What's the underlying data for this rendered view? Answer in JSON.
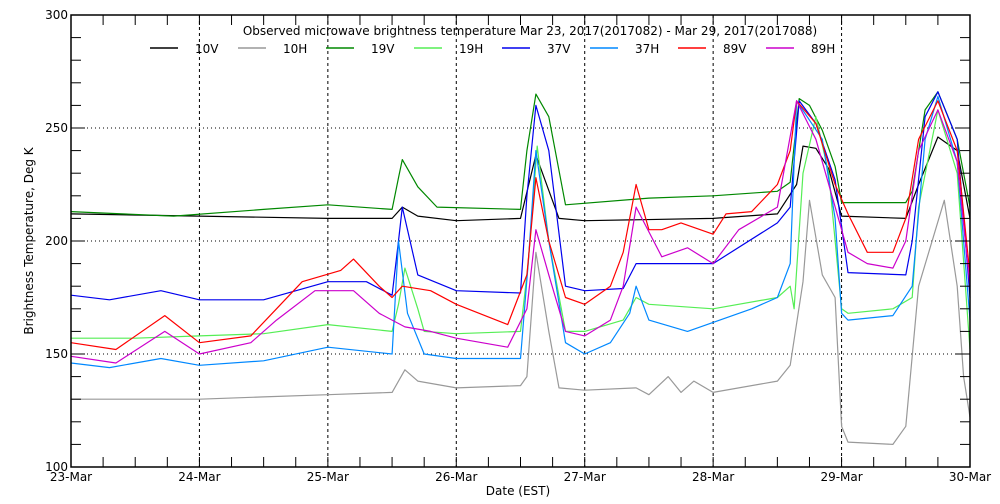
{
  "chart_data": {
    "type": "line",
    "title": "Observed microwave brightness temperature Mar 23, 2017(2017082) - Mar 29, 2017(2017088)",
    "xlabel": "Date (EST)",
    "ylabel": "Brightness Temperature, Deg K",
    "xlim": [
      0,
      7
    ],
    "ylim": [
      100,
      300
    ],
    "x_unit": "days since 23-Mar 00:00",
    "x_ticks": [
      "23-Mar",
      "24-Mar",
      "25-Mar",
      "26-Mar",
      "27-Mar",
      "28-Mar",
      "29-Mar",
      "30-Mar"
    ],
    "y_ticks": [
      "100",
      "150",
      "200",
      "250",
      "300"
    ],
    "grid": true,
    "legend_position": "top",
    "series": [
      {
        "name": "10V",
        "color": "#000000",
        "t": [
          0,
          1,
          2,
          2.5,
          2.58,
          2.7,
          3,
          3.5,
          3.62,
          3.8,
          4,
          5,
          5.5,
          5.65,
          5.7,
          5.8,
          5.9,
          6,
          6.5,
          6.6,
          6.75,
          6.9,
          7
        ],
        "values": [
          212,
          211,
          210,
          210,
          215,
          211,
          209,
          210,
          238,
          210,
          209,
          210,
          212,
          225,
          242,
          241,
          232,
          211,
          210,
          225,
          246,
          240,
          210
        ]
      },
      {
        "name": "10H",
        "color": "#999999",
        "t": [
          0,
          1,
          1.5,
          2,
          2.5,
          2.6,
          2.7,
          3,
          3.5,
          3.55,
          3.62,
          3.72,
          3.8,
          4,
          4.4,
          4.5,
          4.65,
          4.75,
          4.85,
          5,
          5.5,
          5.6,
          5.7,
          5.75,
          5.85,
          5.95,
          6,
          6.05,
          6.4,
          6.5,
          6.6,
          6.8,
          6.9,
          6.95,
          7
        ],
        "values": [
          130,
          130,
          131,
          132,
          133,
          143,
          138,
          135,
          136,
          140,
          195,
          160,
          135,
          134,
          135,
          132,
          140,
          133,
          138,
          133,
          138,
          145,
          182,
          218,
          185,
          175,
          118,
          111,
          110,
          118,
          180,
          218,
          180,
          140,
          122
        ]
      },
      {
        "name": "19V",
        "color": "#008800",
        "t": [
          0,
          0.8,
          1.5,
          2,
          2.5,
          2.55,
          2.58,
          2.7,
          2.85,
          3.5,
          3.55,
          3.62,
          3.72,
          3.85,
          4.5,
          5,
          5.5,
          5.6,
          5.67,
          5.75,
          5.85,
          5.95,
          6,
          6.5,
          6.55,
          6.65,
          6.75,
          6.9,
          7
        ],
        "values": [
          213,
          211,
          214,
          216,
          214,
          228,
          236,
          224,
          215,
          214,
          240,
          265,
          255,
          216,
          219,
          220,
          222,
          226,
          263,
          260,
          249,
          233,
          217,
          217,
          222,
          258,
          266,
          245,
          215
        ]
      },
      {
        "name": "19H",
        "color": "#55ee55",
        "t": [
          0,
          0.5,
          1,
          1.5,
          2,
          2.5,
          2.55,
          2.6,
          2.7,
          2.75,
          3,
          3.5,
          3.56,
          3.63,
          3.72,
          3.85,
          4,
          4.3,
          4.4,
          4.5,
          5,
          5.5,
          5.6,
          5.63,
          5.7,
          5.8,
          5.9,
          6,
          6.05,
          6.4,
          6.55,
          6.6,
          6.75,
          6.9,
          7
        ],
        "values": [
          157,
          157,
          158,
          159,
          163,
          160,
          172,
          188,
          170,
          160,
          159,
          160,
          190,
          242,
          200,
          160,
          160,
          165,
          175,
          172,
          170,
          175,
          180,
          170,
          230,
          255,
          230,
          170,
          168,
          170,
          175,
          215,
          258,
          230,
          152
        ]
      },
      {
        "name": "37V",
        "color": "#0000ee",
        "t": [
          0,
          0.3,
          0.7,
          1,
          1.5,
          2,
          2.3,
          2.5,
          2.55,
          2.58,
          2.62,
          2.7,
          3,
          3.5,
          3.55,
          3.62,
          3.72,
          3.85,
          4,
          4.3,
          4.4,
          4.6,
          5,
          5.5,
          5.6,
          5.67,
          5.8,
          5.95,
          6.05,
          6.5,
          6.55,
          6.65,
          6.75,
          6.9,
          7
        ],
        "values": [
          176,
          174,
          178,
          174,
          174,
          182,
          182,
          176,
          200,
          215,
          205,
          185,
          178,
          177,
          220,
          260,
          240,
          180,
          178,
          179,
          190,
          190,
          190,
          208,
          215,
          262,
          252,
          227,
          186,
          185,
          200,
          255,
          266,
          245,
          175
        ]
      },
      {
        "name": "37H",
        "color": "#0088ff",
        "t": [
          0,
          0.3,
          0.7,
          1,
          1.5,
          2,
          2.5,
          2.55,
          2.62,
          2.75,
          3,
          3.5,
          3.56,
          3.62,
          3.72,
          3.85,
          4,
          4.2,
          4.35,
          4.4,
          4.5,
          4.8,
          5,
          5.3,
          5.5,
          5.6,
          5.65,
          5.85,
          5.95,
          6,
          6.05,
          6.4,
          6.55,
          6.65,
          6.75,
          6.9,
          7
        ],
        "values": [
          146,
          144,
          148,
          145,
          147,
          153,
          150,
          200,
          168,
          150,
          148,
          148,
          190,
          240,
          200,
          155,
          150,
          155,
          168,
          180,
          165,
          160,
          164,
          170,
          175,
          190,
          262,
          245,
          210,
          168,
          165,
          167,
          180,
          245,
          264,
          235,
          165
        ]
      },
      {
        "name": "89V",
        "color": "#ff0000",
        "t": [
          0,
          0.35,
          0.73,
          1,
          1.4,
          1.6,
          1.8,
          2.1,
          2.2,
          2.4,
          2.5,
          2.58,
          2.8,
          3,
          3.4,
          3.55,
          3.62,
          3.72,
          3.85,
          4,
          4.2,
          4.3,
          4.4,
          4.5,
          4.6,
          4.75,
          5,
          5.1,
          5.3,
          5.5,
          5.6,
          5.65,
          5.8,
          5.95,
          6.05,
          6.2,
          6.4,
          6.5,
          6.6,
          6.75,
          6.9,
          7
        ],
        "values": [
          155,
          152,
          167,
          155,
          158,
          170,
          182,
          187,
          192,
          180,
          175,
          180,
          178,
          172,
          163,
          185,
          228,
          200,
          175,
          172,
          180,
          195,
          225,
          205,
          205,
          208,
          203,
          212,
          213,
          225,
          240,
          262,
          252,
          225,
          212,
          195,
          195,
          210,
          245,
          262,
          240,
          185
        ]
      },
      {
        "name": "89H",
        "color": "#cc00cc",
        "t": [
          0,
          0.35,
          0.73,
          1,
          1.4,
          1.6,
          1.9,
          2.2,
          2.4,
          2.5,
          2.6,
          2.8,
          3,
          3.4,
          3.55,
          3.62,
          3.72,
          3.85,
          4,
          4.2,
          4.3,
          4.4,
          4.6,
          4.8,
          5,
          5.2,
          5.5,
          5.65,
          5.8,
          6,
          6.05,
          6.2,
          6.4,
          6.5,
          6.6,
          6.75,
          6.9,
          7
        ],
        "values": [
          149,
          146,
          160,
          150,
          155,
          165,
          178,
          178,
          168,
          165,
          162,
          160,
          157,
          153,
          170,
          205,
          185,
          160,
          158,
          165,
          180,
          215,
          193,
          197,
          190,
          205,
          215,
          262,
          245,
          205,
          195,
          190,
          188,
          200,
          240,
          258,
          235,
          180
        ]
      }
    ]
  }
}
